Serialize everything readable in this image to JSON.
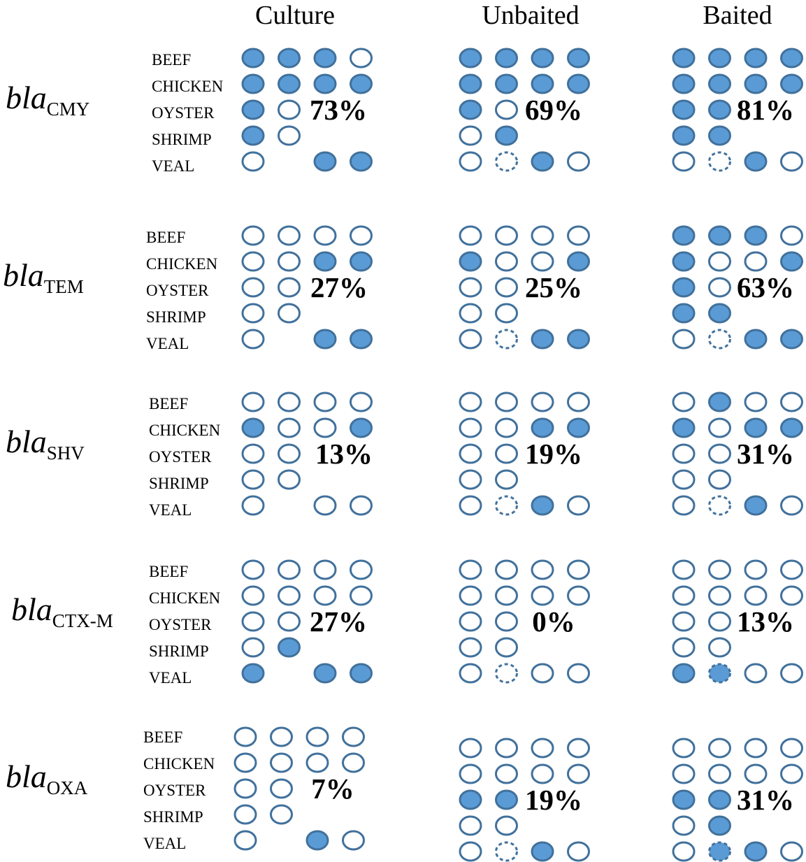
{
  "columns": [
    "Culture",
    "Unbaited",
    "Baited"
  ],
  "samples": [
    "BEEF",
    "CHICKEN",
    "OYSTER",
    "SHRIMP",
    "VEAL"
  ],
  "genes": [
    {
      "name": "bla",
      "sub": "CMY",
      "panels": [
        {
          "percent": "73%",
          "grid": [
            [
              "F",
              "F",
              "F",
              "O"
            ],
            [
              "F",
              "F",
              "F",
              "F"
            ],
            [
              "F",
              "O",
              "",
              ""
            ],
            [
              "F",
              "O",
              "",
              ""
            ],
            [
              "O",
              "",
              "F",
              "F"
            ]
          ]
        },
        {
          "percent": "69%",
          "grid": [
            [
              "F",
              "F",
              "F",
              "F"
            ],
            [
              "F",
              "F",
              "F",
              "F"
            ],
            [
              "F",
              "O",
              "",
              ""
            ],
            [
              "O",
              "F",
              "",
              ""
            ],
            [
              "O",
              "D",
              "F",
              "O"
            ]
          ]
        },
        {
          "percent": "81%",
          "grid": [
            [
              "F",
              "F",
              "F",
              "F"
            ],
            [
              "F",
              "F",
              "F",
              "F"
            ],
            [
              "F",
              "F",
              "",
              ""
            ],
            [
              "F",
              "F",
              "",
              ""
            ],
            [
              "O",
              "D",
              "F",
              "O"
            ]
          ]
        }
      ]
    },
    {
      "name": "bla",
      "sub": "TEM",
      "panels": [
        {
          "percent": "27%",
          "grid": [
            [
              "O",
              "O",
              "O",
              "O"
            ],
            [
              "O",
              "O",
              "F",
              "F"
            ],
            [
              "O",
              "O",
              "",
              ""
            ],
            [
              "O",
              "O",
              "",
              ""
            ],
            [
              "O",
              "",
              "F",
              "F"
            ]
          ]
        },
        {
          "percent": "25%",
          "grid": [
            [
              "O",
              "O",
              "O",
              "O"
            ],
            [
              "F",
              "O",
              "O",
              "F"
            ],
            [
              "O",
              "O",
              "",
              ""
            ],
            [
              "O",
              "O",
              "",
              ""
            ],
            [
              "O",
              "D",
              "F",
              "F"
            ]
          ]
        },
        {
          "percent": "63%",
          "grid": [
            [
              "F",
              "F",
              "F",
              "O"
            ],
            [
              "F",
              "O",
              "O",
              "F"
            ],
            [
              "F",
              "O",
              "",
              ""
            ],
            [
              "F",
              "F",
              "",
              ""
            ],
            [
              "O",
              "D",
              "F",
              "F"
            ]
          ]
        }
      ]
    },
    {
      "name": "bla",
      "sub": "SHV",
      "panels": [
        {
          "percent": "13%",
          "grid": [
            [
              "O",
              "O",
              "O",
              "O"
            ],
            [
              "F",
              "O",
              "O",
              "F"
            ],
            [
              "O",
              "O",
              "",
              ""
            ],
            [
              "O",
              "O",
              "",
              ""
            ],
            [
              "O",
              "",
              "O",
              "O"
            ]
          ]
        },
        {
          "percent": "19%",
          "grid": [
            [
              "O",
              "O",
              "O",
              "O"
            ],
            [
              "O",
              "O",
              "F",
              "F"
            ],
            [
              "O",
              "O",
              "",
              ""
            ],
            [
              "O",
              "O",
              "",
              ""
            ],
            [
              "O",
              "D",
              "F",
              "O"
            ]
          ]
        },
        {
          "percent": "31%",
          "grid": [
            [
              "O",
              "F",
              "O",
              "O"
            ],
            [
              "F",
              "O",
              "F",
              "F"
            ],
            [
              "O",
              "O",
              "",
              ""
            ],
            [
              "O",
              "O",
              "",
              ""
            ],
            [
              "O",
              "D",
              "F",
              "O"
            ]
          ]
        }
      ]
    },
    {
      "name": "bla",
      "sub": "CTX-M",
      "panels": [
        {
          "percent": "27%",
          "grid": [
            [
              "O",
              "O",
              "O",
              "O"
            ],
            [
              "O",
              "O",
              "O",
              "O"
            ],
            [
              "O",
              "O",
              "",
              ""
            ],
            [
              "O",
              "F",
              "",
              ""
            ],
            [
              "F",
              "",
              "F",
              "F"
            ]
          ]
        },
        {
          "percent": "0%",
          "grid": [
            [
              "O",
              "O",
              "O",
              "O"
            ],
            [
              "O",
              "O",
              "O",
              "O"
            ],
            [
              "O",
              "O",
              "",
              ""
            ],
            [
              "O",
              "O",
              "",
              ""
            ],
            [
              "O",
              "D",
              "O",
              "O"
            ]
          ]
        },
        {
          "percent": "13%",
          "grid": [
            [
              "O",
              "O",
              "O",
              "O"
            ],
            [
              "O",
              "O",
              "O",
              "O"
            ],
            [
              "O",
              "O",
              "",
              ""
            ],
            [
              "O",
              "O",
              "",
              ""
            ],
            [
              "F",
              "DF",
              "O",
              "O"
            ]
          ]
        }
      ]
    },
    {
      "name": "bla",
      "sub": "OXA",
      "panels": [
        {
          "percent": "7%",
          "grid": [
            [
              "O",
              "O",
              "O",
              "O"
            ],
            [
              "O",
              "O",
              "O",
              "O"
            ],
            [
              "O",
              "O",
              "",
              ""
            ],
            [
              "O",
              "O",
              "",
              ""
            ],
            [
              "O",
              "",
              "F",
              "O"
            ]
          ]
        },
        {
          "percent": "19%",
          "grid": [
            [
              "O",
              "O",
              "O",
              "O"
            ],
            [
              "O",
              "O",
              "O",
              "O"
            ],
            [
              "F",
              "F",
              "",
              ""
            ],
            [
              "O",
              "O",
              "",
              ""
            ],
            [
              "O",
              "D",
              "F",
              "O"
            ]
          ]
        },
        {
          "percent": "31%",
          "grid": [
            [
              "O",
              "O",
              "O",
              "O"
            ],
            [
              "O",
              "O",
              "O",
              "O"
            ],
            [
              "F",
              "F",
              "",
              ""
            ],
            [
              "O",
              "F",
              "",
              ""
            ],
            [
              "O",
              "DF",
              "F",
              "O"
            ]
          ]
        }
      ]
    }
  ],
  "colors": {
    "fill": "#5b9bd5",
    "stroke": "#41719c",
    "empty": "#ffffff"
  }
}
